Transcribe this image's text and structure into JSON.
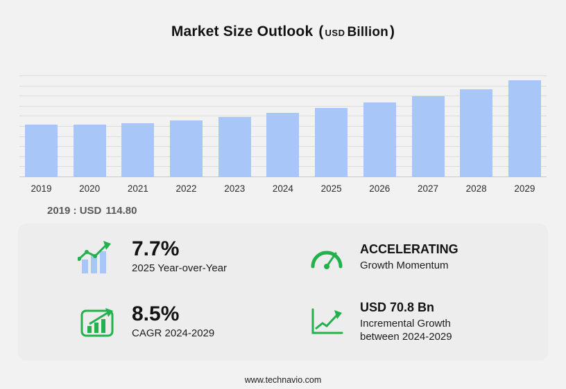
{
  "title": {
    "main": "Market Size Outlook",
    "open": "(",
    "usd": "USD",
    "billion": "Billion",
    "close": ")"
  },
  "chart_data": {
    "type": "bar",
    "title": "Market Size Outlook (USD Billion)",
    "categories": [
      "2019",
      "2020",
      "2021",
      "2022",
      "2023",
      "2024",
      "2025",
      "2026",
      "2027",
      "2028",
      "2029"
    ],
    "values": [
      114.8,
      113.9,
      117.9,
      124.1,
      131.6,
      140.6,
      151.4,
      163.4,
      176.9,
      192.0,
      211.4
    ],
    "xlabel": "",
    "ylabel": "",
    "ylim": [
      0,
      220
    ],
    "grid": true,
    "legend": false
  },
  "baseline": {
    "prefix": "2019 : USD",
    "value": "114.80"
  },
  "stats": [
    {
      "icon": "bar-growth-icon",
      "value": "7.7%",
      "label": "2025 Year-over-Year"
    },
    {
      "icon": "speedometer-icon",
      "value": "ACCELERATING",
      "label": "Growth Momentum"
    },
    {
      "icon": "cagr-bars-icon",
      "value": "8.5%",
      "label": "CAGR 2024-2029"
    },
    {
      "icon": "step-growth-icon",
      "value": "USD 70.8 Bn",
      "label": "Incremental Growth\nbetween 2024-2029"
    }
  ],
  "footer": {
    "url": "www.technavio.com"
  },
  "colors": {
    "bar_fill": "#a9c6f8",
    "accent_green": "#23b14d",
    "background": "#f2f2f2"
  }
}
